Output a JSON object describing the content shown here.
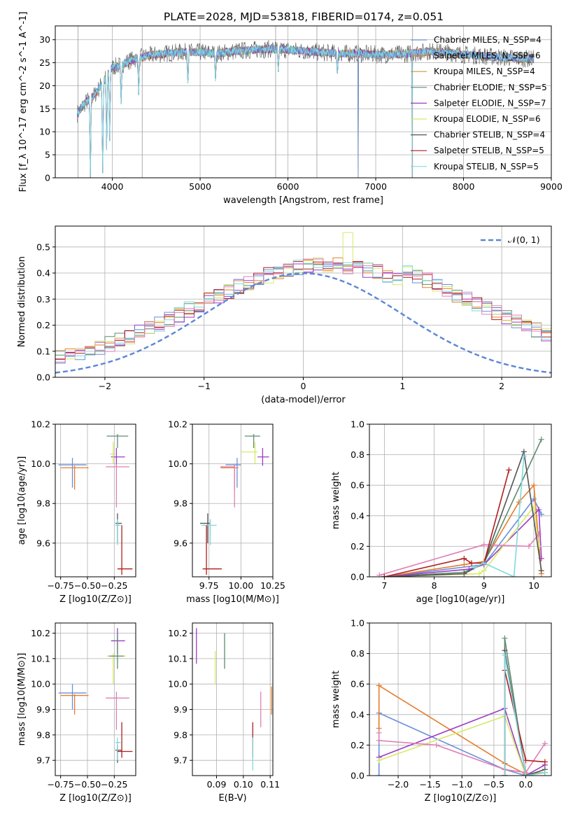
{
  "figure_title": "PLATE=2028, MJD=53818, FIBERID=0174, z=0.051",
  "colors": {
    "Chabrier MILES": "#6a8fdc",
    "Salpeter MILES": "#e87c2a",
    "Kroupa MILES": "#c59a3b",
    "Chabrier ELODIE": "#5f8c6e",
    "Salpeter ELODIE": "#9c3cc4",
    "Kroupa ELODIE": "#d8e86a",
    "Chabrier STELIB": "#555555",
    "Salpeter STELIB": "#b01e1e",
    "Kroupa STELIB": "#7fd9de",
    "pink": "#e07fb6",
    "gauss": "#5b86d6"
  },
  "chart_data": [
    {
      "id": "spectrum",
      "type": "line",
      "title": "PLATE=2028, MJD=53818, FIBERID=0174, z=0.051",
      "xlabel": "wavelength [Angstrom, rest frame]",
      "ylabel": "Flux [f_λ 10^-17 erg cm^-2 s^-1 A^-1]",
      "xlim": [
        3350,
        9000
      ],
      "ylim": [
        0,
        33
      ],
      "xticks": [
        4000,
        5000,
        6000,
        7000,
        8000,
        9000
      ],
      "yticks": [
        0,
        5,
        10,
        15,
        20,
        25,
        30
      ],
      "legend_position": "top-right",
      "legend": [
        "Chabrier MILES, N_SSP=4",
        "Salpeter MILES, N_SSP=6",
        "Kroupa MILES, N_SSP=4",
        "Chabrier ELODIE, N_SSP=5",
        "Salpeter ELODIE, N_SSP=7",
        "Kroupa ELODIE, N_SSP=6",
        "Chabrier STELIB, N_SSP=4",
        "Salpeter STELIB, N_SSP=5",
        "Kroupa STELIB, N_SSP=5"
      ],
      "series_keys": [
        "Chabrier MILES",
        "Salpeter MILES",
        "Kroupa MILES",
        "Chabrier ELODIE",
        "Salpeter ELODIE",
        "Kroupa ELODIE",
        "Chabrier STELIB",
        "Salpeter STELIB",
        "Kroupa STELIB"
      ],
      "continuum": {
        "x": [
          3600,
          3700,
          3800,
          3900,
          4000,
          4100,
          4200,
          4400,
          4600,
          4800,
          5000,
          5200,
          5400,
          5600,
          5800,
          6000,
          6200,
          6400,
          6600,
          6800,
          7000,
          7200,
          7400,
          7600,
          7800,
          8000,
          8200,
          8400,
          8600,
          8800
        ],
        "y": [
          14,
          16.5,
          18,
          21,
          24,
          24.5,
          25.5,
          26.5,
          27,
          27.3,
          27.3,
          27,
          27.5,
          27.8,
          28,
          27.8,
          27.5,
          27.2,
          27,
          27,
          26.8,
          26.8,
          27,
          27.5,
          27.3,
          26.8,
          26.5,
          26.2,
          26,
          25.8
        ]
      },
      "range": [
        3600,
        8800
      ],
      "spikes": [
        3610,
        4340,
        5860,
        6330,
        6800,
        7420
      ],
      "absorption": [
        [
          3750,
          0
        ],
        [
          3890,
          1
        ],
        [
          3935,
          6
        ],
        [
          3970,
          8
        ],
        [
          4100,
          16
        ],
        [
          4300,
          18
        ],
        [
          4861,
          20
        ],
        [
          5175,
          21
        ],
        [
          5890,
          23
        ],
        [
          6563,
          22
        ]
      ]
    },
    {
      "id": "residuals",
      "type": "histogram",
      "xlabel": "(data-model)/error",
      "ylabel": "Normed distribution",
      "xlim": [
        -2.5,
        2.5
      ],
      "ylim": [
        0,
        0.58
      ],
      "xticks": [
        -2,
        -1,
        0,
        1,
        2
      ],
      "yticks": [
        0.0,
        0.1,
        0.2,
        0.3,
        0.4,
        0.5
      ],
      "legend": [
        "𝒩(0, 1)"
      ],
      "legend_position": "top-right",
      "bin_width": 0.1,
      "bin_start": -2.5,
      "series_keys": [
        "Chabrier MILES",
        "Salpeter MILES",
        "Chabrier ELODIE",
        "Salpeter ELODIE",
        "Kroupa ELODIE",
        "Salpeter STELIB",
        "Kroupa STELIB",
        "pink"
      ]
    },
    {
      "id": "age_vs_Z",
      "type": "errorbar",
      "xlabel": "Z [log10(Z/Z⊙)]",
      "ylabel": "age  [log10(age/yr)]",
      "xlim": [
        -0.8,
        -0.05
      ],
      "ylim": [
        9.43,
        10.2
      ],
      "xticks": [
        -0.75,
        -0.5,
        -0.25
      ],
      "yticks": [
        9.6,
        9.8,
        10.0,
        10.2
      ],
      "points": [
        {
          "k": "Chabrier MILES",
          "x": -0.64,
          "y": 9.995,
          "xe": [
            -0.77,
            -0.51
          ],
          "ye": [
            9.88,
            10.03
          ]
        },
        {
          "k": "Salpeter MILES",
          "x": -0.62,
          "y": 9.98,
          "xe": [
            -0.75,
            -0.49
          ],
          "ye": [
            9.87,
            9.99
          ]
        },
        {
          "k": "Chabrier ELODIE",
          "x": -0.22,
          "y": 10.14,
          "xe": [
            -0.32,
            -0.12
          ],
          "ye": [
            10.08,
            10.15
          ]
        },
        {
          "k": "Salpeter ELODIE",
          "x": -0.23,
          "y": 10.035,
          "xe": [
            -0.28,
            -0.15
          ],
          "ye": [
            9.99,
            10.08
          ]
        },
        {
          "k": "Kroupa ELODIE",
          "x": -0.26,
          "y": 10.05,
          "xe": [
            -0.29,
            -0.24
          ],
          "ye": [
            10.0,
            10.11
          ]
        },
        {
          "k": "pink",
          "x": -0.23,
          "y": 9.985,
          "xe": [
            -0.33,
            -0.11
          ],
          "ye": [
            9.78,
            10.0
          ]
        },
        {
          "k": "Chabrier STELIB",
          "x": -0.22,
          "y": 9.7,
          "xe": [
            -0.24,
            -0.18
          ],
          "ye": [
            9.6,
            9.75
          ]
        },
        {
          "k": "Kroupa STELIB",
          "x": -0.22,
          "y": 9.69,
          "xe": [
            -0.24,
            -0.19
          ],
          "ye": [
            9.59,
            9.72
          ]
        },
        {
          "k": "Salpeter STELIB",
          "x": -0.18,
          "y": 9.47,
          "xe": [
            -0.22,
            -0.08
          ],
          "ye": [
            9.44,
            9.69
          ]
        }
      ]
    },
    {
      "id": "age_vs_mass",
      "type": "errorbar",
      "xlabel": "mass [log10(M/M⊙)]",
      "ylabel": "",
      "xlim": [
        9.62,
        10.25
      ],
      "ylim": [
        9.43,
        10.2
      ],
      "xticks": [
        9.75,
        10.0,
        10.25
      ],
      "yticks": [
        9.6,
        9.8,
        10.0,
        10.2
      ],
      "points": [
        {
          "k": "Chabrier MILES",
          "x": 9.97,
          "y": 9.995,
          "xe": [
            9.88,
            10.0
          ],
          "ye": [
            9.88,
            10.03
          ]
        },
        {
          "k": "Salpeter MILES",
          "x": 9.95,
          "y": 9.98,
          "xe": [
            9.84,
            9.98
          ],
          "ye": [
            9.87,
            9.99
          ]
        },
        {
          "k": "Chabrier ELODIE",
          "x": 10.1,
          "y": 10.14,
          "xe": [
            10.03,
            10.15
          ],
          "ye": [
            10.08,
            10.15
          ]
        },
        {
          "k": "Salpeter ELODIE",
          "x": 10.17,
          "y": 10.035,
          "xe": [
            10.13,
            10.22
          ],
          "ye": [
            9.99,
            10.08
          ]
        },
        {
          "k": "Kroupa ELODIE",
          "x": 10.11,
          "y": 10.06,
          "xe": [
            10.0,
            10.13
          ],
          "ye": [
            10.0,
            10.11
          ]
        },
        {
          "k": "pink",
          "x": 9.95,
          "y": 9.985,
          "xe": [
            9.84,
            9.95
          ],
          "ye": [
            9.78,
            10.0
          ]
        },
        {
          "k": "Chabrier STELIB",
          "x": 9.74,
          "y": 9.7,
          "xe": [
            9.68,
            9.76
          ],
          "ye": [
            9.6,
            9.75
          ]
        },
        {
          "k": "Kroupa STELIB",
          "x": 9.76,
          "y": 9.69,
          "xe": [
            9.69,
            9.81
          ],
          "ye": [
            9.59,
            9.72
          ]
        },
        {
          "k": "Salpeter STELIB",
          "x": 9.73,
          "y": 9.47,
          "xe": [
            9.7,
            9.85
          ],
          "ye": [
            9.44,
            9.69
          ]
        }
      ]
    },
    {
      "id": "weight_vs_age",
      "type": "line",
      "xlabel": "age  [log10(age/yr)]",
      "ylabel": "mass weight",
      "xlim": [
        6.7,
        10.35
      ],
      "ylim": [
        0,
        1.0
      ],
      "xticks": [
        7,
        8,
        9,
        10
      ],
      "yticks": [
        0.0,
        0.2,
        0.4,
        0.6,
        0.8,
        1.0
      ],
      "series": [
        {
          "k": "Chabrier MILES",
          "x": [
            7.0,
            9.0,
            10.0,
            10.15
          ],
          "y": [
            0.0,
            0.08,
            0.51,
            0.41
          ]
        },
        {
          "k": "Salpeter MILES",
          "x": [
            7.0,
            8.6,
            9.0,
            9.7,
            10.0,
            10.15
          ],
          "y": [
            0.0,
            0.08,
            0.1,
            0.49,
            0.6,
            0.02
          ]
        },
        {
          "k": "Chabrier ELODIE",
          "x": [
            7.0,
            8.6,
            9.0,
            10.15
          ],
          "y": [
            0.0,
            0.03,
            0.09,
            0.9
          ]
        },
        {
          "k": "Salpeter ELODIE",
          "x": [
            7.0,
            8.7,
            9.0,
            10.1,
            10.15
          ],
          "y": [
            0.0,
            0.05,
            0.08,
            0.44,
            0.12
          ]
        },
        {
          "k": "Kroupa ELODIE",
          "x": [
            7.0,
            8.9,
            9.0,
            10.0,
            10.1
          ],
          "y": [
            0.0,
            0.02,
            0.04,
            0.46,
            0.2
          ]
        },
        {
          "k": "pink",
          "x": [
            6.9,
            9.0,
            9.9,
            10.1
          ],
          "y": [
            0.01,
            0.21,
            0.2,
            0.28
          ]
        },
        {
          "k": "Chabrier STELIB",
          "x": [
            7.0,
            8.6,
            9.0,
            9.8,
            10.15
          ],
          "y": [
            0.0,
            0.02,
            0.09,
            0.82,
            0.04
          ]
        },
        {
          "k": "Salpeter STELIB",
          "x": [
            7.0,
            8.6,
            8.75,
            9.0,
            9.5
          ],
          "y": [
            0.0,
            0.12,
            0.09,
            0.09,
            0.7
          ]
        },
        {
          "k": "Kroupa STELIB",
          "x": [
            8.8,
            9.0,
            9.6,
            9.8
          ],
          "y": [
            0.06,
            0.09,
            0.0,
            0.79
          ]
        }
      ]
    },
    {
      "id": "mass_vs_Z",
      "type": "errorbar",
      "xlabel": "Z [log10(Z/Z⊙)]",
      "ylabel": "mass [log10(M/M⊙)]",
      "xlim": [
        -0.8,
        -0.05
      ],
      "ylim": [
        9.64,
        10.24
      ],
      "xticks": [
        -0.75,
        -0.5,
        -0.25
      ],
      "yticks": [
        9.7,
        9.8,
        9.9,
        10.0,
        10.1,
        10.2
      ],
      "points": [
        {
          "k": "Chabrier MILES",
          "x": -0.64,
          "y": 9.965,
          "xe": [
            -0.77,
            -0.51
          ],
          "ye": [
            9.9,
            10.0
          ]
        },
        {
          "k": "Salpeter MILES",
          "x": -0.62,
          "y": 9.955,
          "xe": [
            -0.75,
            -0.49
          ],
          "ye": [
            9.88,
            9.96
          ]
        },
        {
          "k": "Salpeter ELODIE",
          "x": -0.22,
          "y": 10.17,
          "xe": [
            -0.28,
            -0.15
          ],
          "ye": [
            10.12,
            10.22
          ]
        },
        {
          "k": "Kroupa ELODIE",
          "x": -0.26,
          "y": 10.11,
          "xe": [
            -0.32,
            -0.14
          ],
          "ye": [
            10.0,
            10.12
          ]
        },
        {
          "k": "Chabrier ELODIE",
          "x": -0.22,
          "y": 10.11,
          "xe": [
            -0.3,
            -0.16
          ],
          "ye": [
            10.06,
            10.2
          ]
        },
        {
          "k": "pink",
          "x": -0.23,
          "y": 9.945,
          "xe": [
            -0.33,
            -0.11
          ],
          "ye": [
            9.82,
            9.97
          ]
        },
        {
          "k": "Chabrier STELIB",
          "x": -0.22,
          "y": 9.74,
          "xe": [
            -0.24,
            -0.18
          ],
          "ye": [
            9.69,
            9.76
          ]
        },
        {
          "k": "Kroupa STELIB",
          "x": -0.22,
          "y": 9.77,
          "xe": [
            -0.24,
            -0.19
          ],
          "ye": [
            9.7,
            9.79
          ]
        },
        {
          "k": "Salpeter STELIB",
          "x": -0.18,
          "y": 9.735,
          "xe": [
            -0.22,
            -0.08
          ],
          "ye": [
            9.71,
            9.85
          ]
        }
      ]
    },
    {
      "id": "Ebv",
      "type": "errorbar",
      "xlabel": "E(B-V)",
      "ylabel": "",
      "xlim": [
        0.081,
        0.111
      ],
      "ylim": [
        9.64,
        10.24
      ],
      "xticks": [
        0.09,
        0.1,
        0.11
      ],
      "yticks": [
        9.7,
        9.8,
        9.9,
        10.0,
        10.1,
        10.2
      ],
      "points": [
        {
          "k": "Salpeter ELODIE",
          "x": 0.0825,
          "y": 10.15,
          "xe": [
            0.0825,
            0.0825
          ],
          "ye": [
            10.08,
            10.22
          ]
        },
        {
          "k": "Kroupa ELODIE",
          "x": 0.0895,
          "y": 10.07,
          "xe": [
            0.0895,
            0.0895
          ],
          "ye": [
            10.0,
            10.13
          ]
        },
        {
          "k": "Chabrier ELODIE",
          "x": 0.093,
          "y": 10.13,
          "xe": [
            0.093,
            0.093
          ],
          "ye": [
            10.06,
            10.2
          ]
        },
        {
          "k": "Salpeter STELIB",
          "x": 0.1035,
          "y": 9.78,
          "xe": [
            0.1035,
            0.1035
          ],
          "ye": [
            9.71,
            9.85
          ]
        },
        {
          "k": "Kroupa STELIB",
          "x": 0.1035,
          "y": 9.72,
          "xe": [
            0.1035,
            0.1035
          ],
          "ye": [
            9.66,
            9.79
          ]
        },
        {
          "k": "pink",
          "x": 0.1065,
          "y": 9.9,
          "xe": [
            0.1065,
            0.1065
          ],
          "ye": [
            9.83,
            9.97
          ]
        },
        {
          "k": "Salpeter MILES",
          "x": 0.1105,
          "y": 9.93,
          "xe": [
            0.1105,
            0.1105
          ],
          "ye": [
            9.88,
            9.99
          ]
        }
      ]
    },
    {
      "id": "weight_vs_Z",
      "type": "line",
      "xlabel": "Z [log10(Z/Z⊙)]",
      "ylabel": "mass weight",
      "xlim": [
        -2.45,
        0.4
      ],
      "ylim": [
        0,
        1.0
      ],
      "xticks": [
        -2.0,
        -1.5,
        -1.0,
        -0.5,
        0.0
      ],
      "yticks": [
        0.0,
        0.2,
        0.4,
        0.6,
        0.8,
        1.0
      ],
      "series": [
        {
          "k": "Chabrier MILES",
          "x": [
            -2.3,
            -2.3,
            -0.33,
            0.0,
            0.3
          ],
          "y": [
            0.0,
            0.41,
            0.04,
            0.0,
            0.02
          ]
        },
        {
          "k": "Salpeter MILES",
          "x": [
            -2.3,
            -2.3,
            -0.33,
            0.0,
            0.3
          ],
          "y": [
            0.31,
            0.59,
            0.08,
            0.01,
            0.02
          ]
        },
        {
          "k": "Chabrier ELODIE",
          "x": [
            -0.33,
            -0.33,
            0.0,
            0.3
          ],
          "y": [
            0.0,
            0.9,
            0.0,
            0.02
          ]
        },
        {
          "k": "Salpeter ELODIE",
          "x": [
            -2.3,
            -0.33,
            0.0,
            0.3
          ],
          "y": [
            0.12,
            0.44,
            0.0,
            0.07
          ]
        },
        {
          "k": "Kroupa ELODIE",
          "x": [
            -2.3,
            -0.33,
            0.0,
            0.3
          ],
          "y": [
            0.1,
            0.39,
            0.0,
            0.04
          ]
        },
        {
          "k": "pink",
          "x": [
            -2.3,
            -2.3,
            -1.4,
            -0.33,
            0.0,
            0.3
          ],
          "y": [
            0.28,
            0.23,
            0.2,
            0.04,
            0.02,
            0.21
          ]
        },
        {
          "k": "Chabrier STELIB",
          "x": [
            -0.33,
            -0.33,
            0.0,
            0.3
          ],
          "y": [
            0.0,
            0.82,
            0.0,
            0.04
          ]
        },
        {
          "k": "Salpeter STELIB",
          "x": [
            -0.33,
            -0.33,
            0.0,
            0.3
          ],
          "y": [
            0.0,
            0.69,
            0.1,
            0.09
          ]
        },
        {
          "k": "Kroupa STELIB",
          "x": [
            -0.33,
            -0.33,
            0.0,
            0.3
          ],
          "y": [
            0.0,
            0.79,
            0.0,
            0.02
          ]
        }
      ]
    }
  ]
}
